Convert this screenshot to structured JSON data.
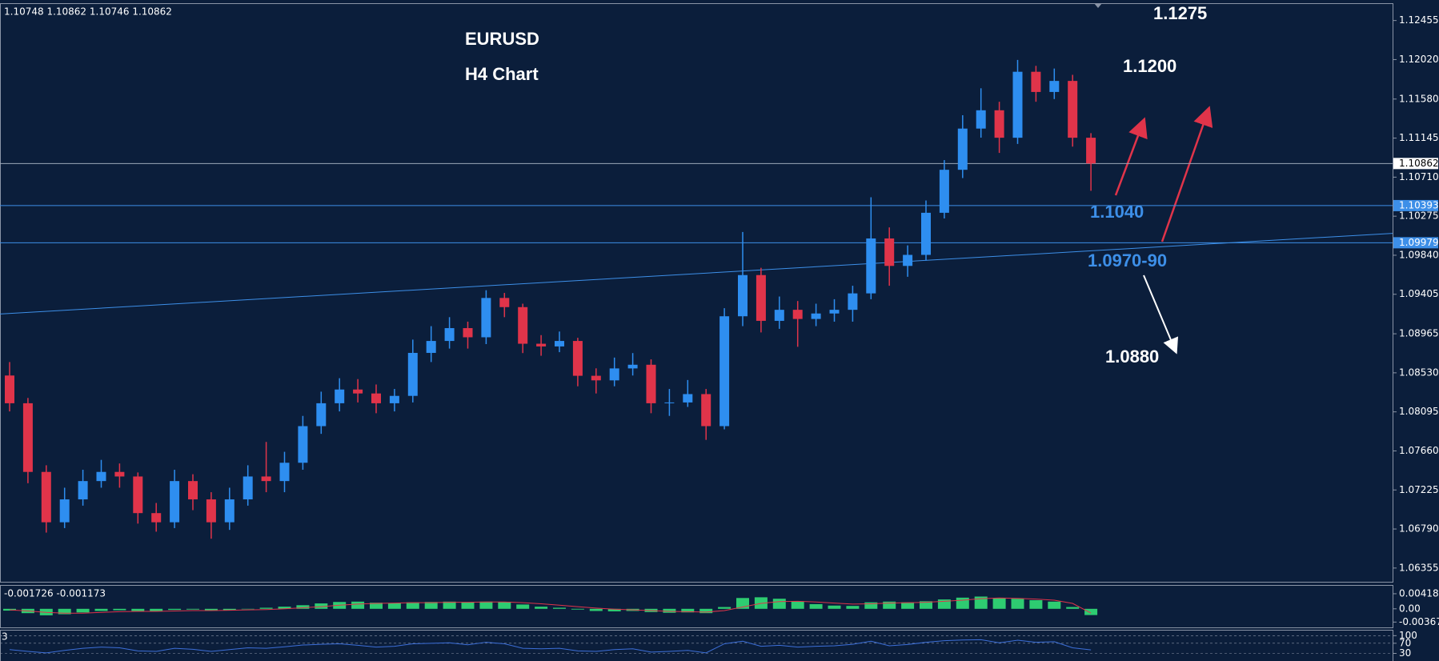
{
  "chart_data": [
    {
      "type": "candlestick",
      "header": "1.10748 1.10862 1.10746 1.10862",
      "title": "EURUSD",
      "subtitle": "H4 Chart",
      "annotations": [
        {
          "text": "1.1275",
          "color": "#ffffff"
        },
        {
          "text": "1.1200",
          "color": "#ffffff"
        },
        {
          "text": "1.1040",
          "color": "#3d8fe8"
        },
        {
          "text": "1.0970-90",
          "color": "#3d8fe8"
        },
        {
          "text": "1.0880",
          "color": "#ffffff"
        }
      ],
      "open": [
        1.085,
        1.08191,
        1.07426,
        1.06865,
        1.0712,
        1.07324,
        1.07426,
        1.07375,
        1.06967,
        1.06865,
        1.07324,
        1.0712,
        1.06865,
        1.0712,
        1.07375,
        1.07324,
        1.07528,
        1.07936,
        1.08191,
        1.08344,
        1.083,
        1.08191,
        1.08273,
        1.08752,
        1.08885,
        1.09028,
        1.08926,
        1.09364,
        1.09262,
        1.08854,
        1.08824,
        1.08885,
        1.08497,
        1.08446,
        1.08579,
        1.0862,
        1.08191,
        1.082,
        1.08293,
        1.07936,
        1.0916,
        1.09619,
        1.09109,
        1.09232,
        1.0913,
        1.09191,
        1.09232,
        1.09415,
        1.10027,
        1.09721,
        1.09844,
        1.10313,
        1.10792,
        1.11251,
        1.11455,
        1.11149,
        1.11884,
        1.11659,
        1.11782,
        1.11149
      ],
      "high": [
        1.0865,
        1.0825,
        1.075,
        1.0725,
        1.0745,
        1.0756,
        1.0752,
        1.0742,
        1.0708,
        1.0745,
        1.074,
        1.072,
        1.0725,
        1.075,
        1.0776,
        1.0765,
        1.0805,
        1.0832,
        1.0847,
        1.0846,
        1.084,
        1.0835,
        1.089,
        1.0905,
        1.0915,
        1.091,
        1.0945,
        1.0942,
        1.093,
        1.0895,
        1.0899,
        1.0892,
        1.0858,
        1.087,
        1.0875,
        1.0868,
        1.0835,
        1.0845,
        1.0835,
        1.0925,
        1.10099,
        1.097,
        1.0938,
        1.0933,
        1.093,
        1.0935,
        1.095,
        1.10486,
        1.1015,
        1.0995,
        1.1045,
        1.109,
        1.114,
        1.117,
        1.1155,
        1.12016,
        1.1195,
        1.1192,
        1.1185,
        1.112
      ],
      "low": [
        1.081,
        1.073,
        1.0675,
        1.068,
        1.0705,
        1.0725,
        1.0725,
        1.0685,
        1.0676,
        1.068,
        1.07,
        1.06682,
        1.0678,
        1.0705,
        1.072,
        1.072,
        1.0745,
        1.0785,
        1.081,
        1.082,
        1.0808,
        1.081,
        1.082,
        1.0865,
        1.088,
        1.088,
        1.0885,
        1.0915,
        1.0875,
        1.0872,
        1.0876,
        1.0838,
        1.083,
        1.0838,
        1.085,
        1.0808,
        1.0805,
        1.0815,
        1.07783,
        1.079,
        1.0905,
        1.0898,
        1.0902,
        1.0882,
        1.0905,
        1.091,
        1.091,
        1.0935,
        1.095,
        1.096,
        1.0978,
        1.1025,
        1.107,
        1.1115,
        1.1098,
        1.1108,
        1.1155,
        1.1158,
        1.1105,
        1.10558
      ],
      "close": [
        1.08191,
        1.07426,
        1.06865,
        1.0712,
        1.07324,
        1.07426,
        1.07375,
        1.06967,
        1.06865,
        1.07324,
        1.0712,
        1.06865,
        1.0712,
        1.07375,
        1.07324,
        1.07528,
        1.07936,
        1.08191,
        1.08344,
        1.083,
        1.08191,
        1.08273,
        1.08752,
        1.08885,
        1.09028,
        1.08926,
        1.09364,
        1.09262,
        1.08854,
        1.08824,
        1.08885,
        1.08497,
        1.08446,
        1.08579,
        1.0862,
        1.08191,
        1.082,
        1.08293,
        1.07936,
        1.0916,
        1.09619,
        1.09109,
        1.09232,
        1.0913,
        1.09191,
        1.09232,
        1.09415,
        1.10027,
        1.09721,
        1.09844,
        1.10313,
        1.10792,
        1.11251,
        1.11455,
        1.11149,
        1.11884,
        1.11659,
        1.11782,
        1.11149,
        1.10862
      ],
      "up_color": "#2e8ef0",
      "down_color": "#e0344a",
      "last_price": 1.10862,
      "last_price_color": "#9aa7b8",
      "levels": [
        1.10393,
        1.09979
      ],
      "level_color": "#3d8fe8",
      "trendline": [
        1.09185,
        1.10084
      ],
      "ylim": [
        1.06202,
        1.12639
      ],
      "yticks": [
        1.12455,
        {
          "value": 1.1202,
          "label": "1.12020"
        },
        {
          "value": 1.1158,
          "label": "1.11580"
        },
        1.11145,
        {
          "value": 1.1071,
          "label": "1.10710"
        },
        1.10275,
        {
          "value": 1.0984,
          "label": "1.09840"
        },
        1.09405,
        1.08965,
        {
          "value": 1.0853,
          "label": "1.08530"
        },
        1.08095,
        {
          "value": 1.0766,
          "label": "1.07660"
        },
        1.07225,
        {
          "value": 1.0679,
          "label": "1.06790"
        },
        1.06355
      ]
    },
    {
      "type": "bar",
      "header": "-0.001726 -0.001173",
      "series": [
        {
          "color": "#2ecc71",
          "values": [
            -0.0005,
            -0.0012,
            -0.0018,
            -0.0015,
            -0.001,
            -0.0006,
            -0.0004,
            -0.0006,
            -0.0007,
            -0.0003,
            -0.0002,
            -0.0005,
            -0.0004,
            0.0,
            0.0003,
            0.0006,
            0.001,
            0.0015,
            0.0019,
            0.002,
            0.0017,
            0.0016,
            0.0018,
            0.0019,
            0.002,
            0.0018,
            0.002,
            0.0019,
            0.0012,
            0.0006,
            0.0003,
            -0.0002,
            -0.0006,
            -0.0007,
            -0.0006,
            -0.0009,
            -0.0011,
            -0.001,
            -0.0012,
            0.0005,
            0.003,
            0.0032,
            0.0028,
            0.002,
            0.0013,
            0.0009,
            0.0008,
            0.0018,
            0.002,
            0.0018,
            0.0021,
            0.0026,
            0.0031,
            0.0034,
            0.003,
            0.0028,
            0.0024,
            0.002,
            0.0005,
            -0.001726
          ]
        },
        {
          "color": "#e0344a",
          "values": [
            -0.0003,
            -0.0006,
            -0.001,
            -0.0012,
            -0.0012,
            -0.001,
            -0.0008,
            -0.0007,
            -0.0007,
            -0.0006,
            -0.0005,
            -0.0005,
            -0.0004,
            -0.0003,
            -0.0002,
            0.0,
            0.0003,
            0.0006,
            0.001,
            0.0013,
            0.0015,
            0.0016,
            0.0017,
            0.0017,
            0.0018,
            0.0018,
            0.0019,
            0.0019,
            0.0017,
            0.0014,
            0.001,
            0.0006,
            0.0002,
            -0.0001,
            -0.0003,
            -0.0005,
            -0.0007,
            -0.0008,
            -0.0009,
            -0.0005,
            0.0005,
            0.0015,
            0.002,
            0.0021,
            0.0019,
            0.0016,
            0.0013,
            0.0014,
            0.0016,
            0.0017,
            0.0018,
            0.0021,
            0.0024,
            0.0028,
            0.003,
            0.0029,
            0.0027,
            0.0024,
            0.0015,
            -0.001173
          ]
        }
      ],
      "ylim": [
        -0.00515,
        0.00639
      ],
      "yticks": [
        0.004184,
        {
          "value": 0,
          "label": "0.00"
        },
        -0.003674
      ]
    },
    {
      "type": "line",
      "header": "3",
      "color": "#3d6fd8",
      "values": [
        45,
        38,
        32,
        42,
        50,
        55,
        52,
        40,
        38,
        50,
        46,
        38,
        45,
        52,
        50,
        56,
        63,
        66,
        68,
        62,
        55,
        58,
        68,
        70,
        72,
        64,
        74,
        68,
        50,
        48,
        50,
        40,
        38,
        45,
        48,
        35,
        38,
        42,
        32,
        68,
        78,
        58,
        62,
        55,
        58,
        60,
        66,
        78,
        60,
        65,
        74,
        80,
        83,
        84,
        72,
        82,
        74,
        76,
        52,
        44
      ],
      "ylim": [
        0,
        120
      ],
      "yticks": [
        100,
        70,
        30
      ]
    }
  ]
}
